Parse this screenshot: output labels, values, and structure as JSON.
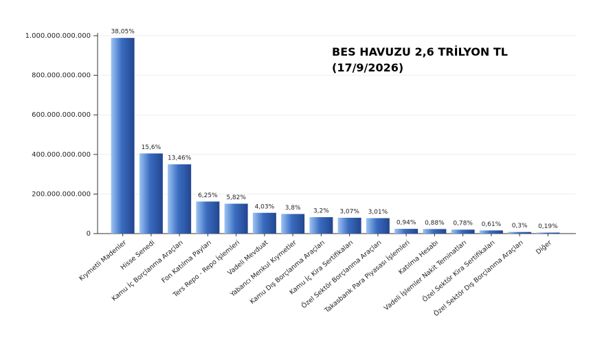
{
  "chart_data": {
    "type": "bar",
    "title": "BES HAVUZU 2,6 TRİLYON TL",
    "subtitle": "(17/9/2026)",
    "categories": [
      "Kıymetli Madenler",
      "Hisse Senedi",
      "Kamu İç Borçlanma Araçları",
      "Fon Katılma Payları",
      "Ters Repo - Repo İşlemleri",
      "Vadeli Mevduat",
      "Yabancı Menkul Kıymetler",
      "Kamu Dış Borçlanma Araçları",
      "Kamu İç Kira Sertifikaları",
      "Özel Sektör Borçlanma Araçları",
      "Takasbank Para Piyasası İşlemleri",
      "Katılma Hesabı",
      "Vadeli İşlemler Nakit Teminatları",
      "Özel Sektör Kira Sertifikaları",
      "Özel Sektör Dış Borçlanma Araçları",
      "Diğer"
    ],
    "values": [
      989000000000,
      405000000000,
      350000000000,
      162000000000,
      151000000000,
      105000000000,
      99000000000,
      83000000000,
      80000000000,
      78000000000,
      24000000000,
      23000000000,
      20000000000,
      16000000000,
      8000000000,
      5000000000
    ],
    "shares": [
      {
        "value": 38.05,
        "label": "38,05%"
      },
      {
        "value": 15.6,
        "label": "15,6%"
      },
      {
        "value": 13.46,
        "label": "13,46%"
      },
      {
        "value": 6.25,
        "label": "6,25%"
      },
      {
        "value": 5.82,
        "label": "5,82%"
      },
      {
        "value": 4.03,
        "label": "4,03%"
      },
      {
        "value": 3.8,
        "label": "3,8%"
      },
      {
        "value": 3.2,
        "label": "3,2%"
      },
      {
        "value": 3.07,
        "label": "3,07%"
      },
      {
        "value": 3.01,
        "label": "3,01%"
      },
      {
        "value": 0.94,
        "label": "0,94%"
      },
      {
        "value": 0.88,
        "label": "0,88%"
      },
      {
        "value": 0.78,
        "label": "0,78%"
      },
      {
        "value": 0.61,
        "label": "0,61%"
      },
      {
        "value": 0.3,
        "label": "0,3%"
      },
      {
        "value": 0.19,
        "label": "0,19%"
      }
    ],
    "color": "#3a6cc0",
    "ylim": [
      0,
      1000000000000
    ],
    "yticks": [
      0,
      {
        "value": 200000000000,
        "label": "200.000.000.000"
      },
      {
        "value": 400000000000,
        "label": "400.000.000.000"
      },
      {
        "value": 600000000000,
        "label": "600.000.000.000"
      },
      {
        "value": 800000000000,
        "label": "800.000.000.000"
      },
      {
        "value": 1000000000000,
        "label": "1.000.000.000.000"
      }
    ],
    "grid": true
  }
}
